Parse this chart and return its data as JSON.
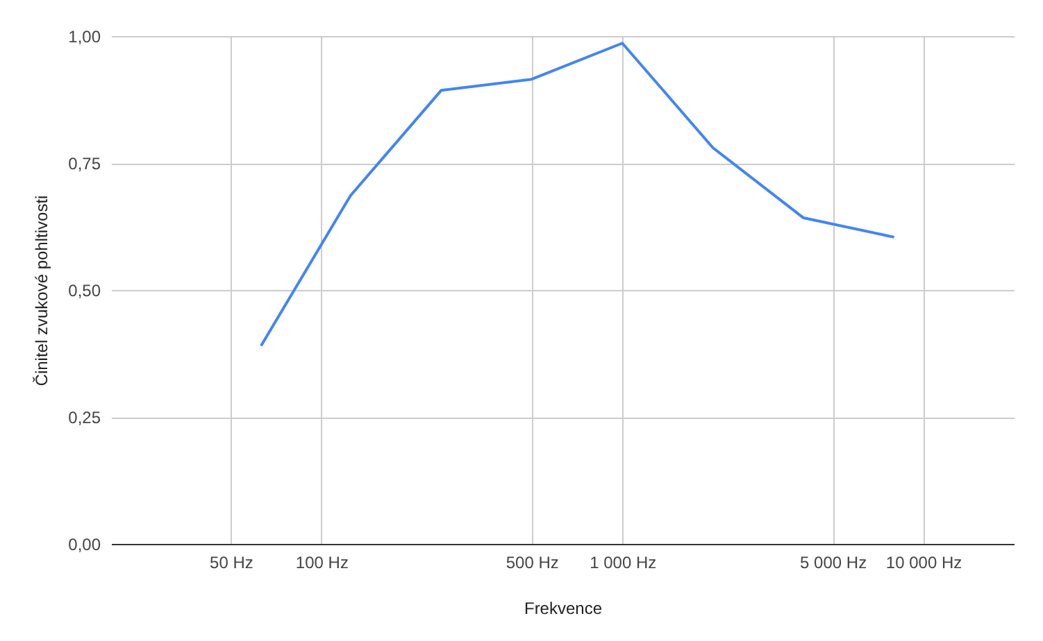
{
  "chart_data": {
    "type": "line",
    "xlabel": "Frekvence",
    "ylabel": "Činitel zvukové pohltivosti",
    "x": [
      63,
      125,
      250,
      500,
      1000,
      2000,
      4000,
      8000
    ],
    "series": [
      {
        "color": "#4285f4",
        "values": [
          0.39,
          0.686,
          0.893,
          0.915,
          0.986,
          0.78,
          0.642,
          0.604
        ]
      }
    ],
    "log": "x",
    "xlim": [
      20,
      20000
    ],
    "xticks": [
      {
        "value": 50,
        "label": "50 Hz"
      },
      {
        "value": 100,
        "label": "100 Hz"
      },
      {
        "value": 500,
        "label": "500 Hz"
      },
      {
        "value": 1000,
        "label": "1 000 Hz"
      },
      {
        "value": 5000,
        "label": "5 000 Hz"
      },
      {
        "value": 10000,
        "label": "10 000 Hz"
      }
    ],
    "ylim": [
      0,
      1
    ],
    "yticks": [
      {
        "value": 0,
        "label": "0,00"
      },
      {
        "value": 0.25,
        "label": "0,25"
      },
      {
        "value": 0.5,
        "label": "0,50"
      },
      {
        "value": 0.75,
        "label": "0,75"
      },
      {
        "value": 1,
        "label": "1,00"
      }
    ],
    "grid": true,
    "marker": "none",
    "line_style": "solid"
  }
}
